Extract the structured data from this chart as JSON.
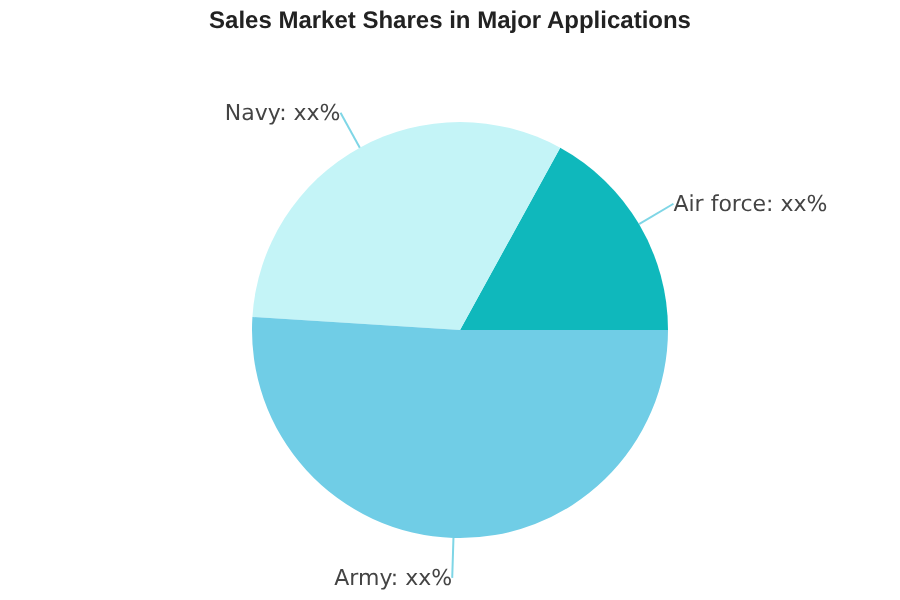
{
  "chart_data": {
    "type": "pie",
    "title": "Sales Market Shares in Major Applications",
    "categories": [
      "Air force",
      "Navy",
      "Army"
    ],
    "values": [
      17,
      32,
      51
    ],
    "colors": [
      "#0fb8bc",
      "#c4f4f7",
      "#70cde6"
    ],
    "value_labels": [
      "xx%",
      "xx%",
      "xx%"
    ],
    "legend": false
  }
}
